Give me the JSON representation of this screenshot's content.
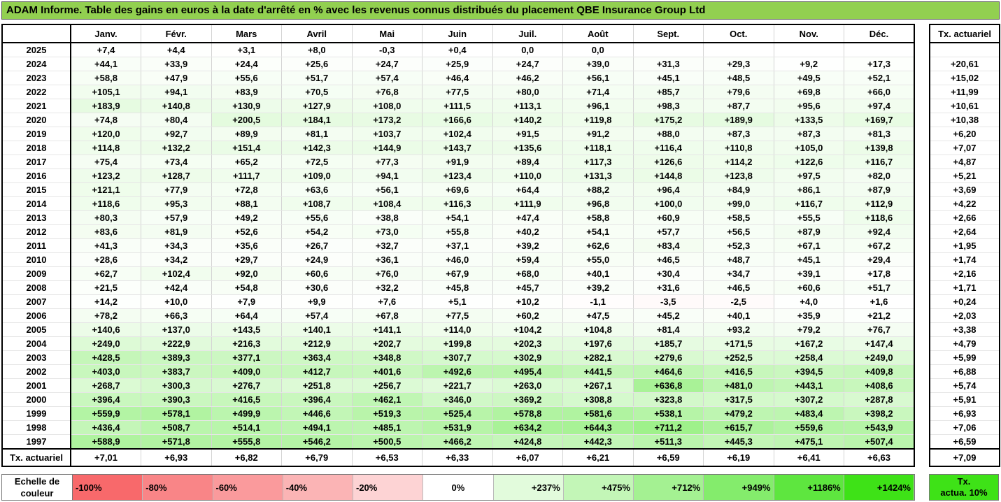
{
  "title": "ADAM Informe. Table des gains en euros à la date d'arrêté en % avec les revenus connus distribués du placement QBE Insurance Group Ltd",
  "months": [
    "Janv.",
    "Févr.",
    "Mars",
    "Avril",
    "Mai",
    "Juin",
    "Juil.",
    "Août",
    "Sept.",
    "Oct.",
    "Nov.",
    "Déc."
  ],
  "side_header": "Tx. actuariel",
  "rows": [
    {
      "year": "2025",
      "vals": [
        "+7,4",
        "+4,4",
        "+3,1",
        "+8,0",
        "-0,3",
        "+0,4",
        "0,0",
        "0,0",
        "",
        "",
        "",
        ""
      ],
      "rate": ""
    },
    {
      "year": "2024",
      "vals": [
        "+44,1",
        "+33,9",
        "+24,4",
        "+25,6",
        "+24,7",
        "+25,9",
        "+24,7",
        "+39,0",
        "+31,3",
        "+29,3",
        "+9,2",
        "+17,3"
      ],
      "rate": "+20,61"
    },
    {
      "year": "2023",
      "vals": [
        "+58,8",
        "+47,9",
        "+55,6",
        "+51,7",
        "+57,4",
        "+46,4",
        "+46,2",
        "+56,1",
        "+45,1",
        "+48,5",
        "+49,5",
        "+52,1"
      ],
      "rate": "+15,02"
    },
    {
      "year": "2022",
      "vals": [
        "+105,1",
        "+94,1",
        "+83,9",
        "+70,5",
        "+76,8",
        "+77,5",
        "+80,0",
        "+71,4",
        "+85,7",
        "+79,6",
        "+69,8",
        "+66,0"
      ],
      "rate": "+11,99"
    },
    {
      "year": "2021",
      "vals": [
        "+183,9",
        "+140,8",
        "+130,9",
        "+127,9",
        "+108,0",
        "+111,5",
        "+113,1",
        "+96,1",
        "+98,3",
        "+87,7",
        "+95,6",
        "+97,4"
      ],
      "rate": "+10,61"
    },
    {
      "year": "2020",
      "vals": [
        "+74,8",
        "+80,4",
        "+200,5",
        "+184,1",
        "+173,2",
        "+166,6",
        "+140,2",
        "+119,8",
        "+175,2",
        "+189,9",
        "+133,5",
        "+169,7"
      ],
      "rate": "+10,38"
    },
    {
      "year": "2019",
      "vals": [
        "+120,0",
        "+92,7",
        "+89,9",
        "+81,1",
        "+103,7",
        "+102,4",
        "+91,5",
        "+91,2",
        "+88,0",
        "+87,3",
        "+87,3",
        "+81,3"
      ],
      "rate": "+6,20"
    },
    {
      "year": "2018",
      "vals": [
        "+114,8",
        "+132,2",
        "+151,4",
        "+142,3",
        "+144,9",
        "+143,7",
        "+135,6",
        "+118,1",
        "+116,4",
        "+110,8",
        "+105,0",
        "+139,8"
      ],
      "rate": "+7,07"
    },
    {
      "year": "2017",
      "vals": [
        "+75,4",
        "+73,4",
        "+65,2",
        "+72,5",
        "+77,3",
        "+91,9",
        "+89,4",
        "+117,3",
        "+126,6",
        "+114,2",
        "+122,6",
        "+116,7"
      ],
      "rate": "+4,87"
    },
    {
      "year": "2016",
      "vals": [
        "+123,2",
        "+128,7",
        "+111,7",
        "+109,0",
        "+94,1",
        "+123,4",
        "+110,0",
        "+131,3",
        "+144,8",
        "+123,8",
        "+97,5",
        "+82,0"
      ],
      "rate": "+5,21"
    },
    {
      "year": "2015",
      "vals": [
        "+121,1",
        "+77,9",
        "+72,8",
        "+63,6",
        "+56,1",
        "+69,6",
        "+64,4",
        "+88,2",
        "+96,4",
        "+84,9",
        "+86,1",
        "+87,9"
      ],
      "rate": "+3,69"
    },
    {
      "year": "2014",
      "vals": [
        "+118,6",
        "+95,3",
        "+88,1",
        "+108,7",
        "+108,4",
        "+116,3",
        "+111,9",
        "+96,8",
        "+100,0",
        "+99,0",
        "+116,7",
        "+112,9"
      ],
      "rate": "+4,22"
    },
    {
      "year": "2013",
      "vals": [
        "+80,3",
        "+57,9",
        "+49,2",
        "+55,6",
        "+38,8",
        "+54,1",
        "+47,4",
        "+58,8",
        "+60,9",
        "+58,5",
        "+55,5",
        "+118,6"
      ],
      "rate": "+2,66"
    },
    {
      "year": "2012",
      "vals": [
        "+83,6",
        "+81,9",
        "+52,6",
        "+54,2",
        "+73,0",
        "+55,8",
        "+40,2",
        "+54,1",
        "+57,7",
        "+56,5",
        "+87,9",
        "+92,4"
      ],
      "rate": "+2,64"
    },
    {
      "year": "2011",
      "vals": [
        "+41,3",
        "+34,3",
        "+35,6",
        "+26,7",
        "+32,7",
        "+37,1",
        "+39,2",
        "+62,6",
        "+83,4",
        "+52,3",
        "+67,1",
        "+67,2"
      ],
      "rate": "+1,95"
    },
    {
      "year": "2010",
      "vals": [
        "+28,6",
        "+34,2",
        "+29,7",
        "+24,9",
        "+36,1",
        "+46,0",
        "+59,4",
        "+55,0",
        "+46,5",
        "+48,7",
        "+45,1",
        "+29,4"
      ],
      "rate": "+1,74"
    },
    {
      "year": "2009",
      "vals": [
        "+62,7",
        "+102,4",
        "+92,0",
        "+60,6",
        "+76,0",
        "+67,9",
        "+68,0",
        "+40,1",
        "+30,4",
        "+34,7",
        "+39,1",
        "+17,8"
      ],
      "rate": "+2,16"
    },
    {
      "year": "2008",
      "vals": [
        "+21,5",
        "+42,4",
        "+54,8",
        "+30,6",
        "+32,2",
        "+45,8",
        "+45,7",
        "+39,2",
        "+31,6",
        "+46,5",
        "+60,6",
        "+51,7"
      ],
      "rate": "+1,71"
    },
    {
      "year": "2007",
      "vals": [
        "+14,2",
        "+10,0",
        "+7,9",
        "+9,9",
        "+7,6",
        "+5,1",
        "+10,2",
        "-1,1",
        "-3,5",
        "-2,5",
        "+4,0",
        "+1,6"
      ],
      "rate": "+0,24"
    },
    {
      "year": "2006",
      "vals": [
        "+78,2",
        "+66,3",
        "+64,4",
        "+57,4",
        "+67,8",
        "+77,5",
        "+60,2",
        "+47,5",
        "+45,2",
        "+40,1",
        "+35,9",
        "+21,2"
      ],
      "rate": "+2,03"
    },
    {
      "year": "2005",
      "vals": [
        "+140,6",
        "+137,0",
        "+143,5",
        "+140,1",
        "+141,1",
        "+114,0",
        "+104,2",
        "+104,8",
        "+81,4",
        "+93,2",
        "+79,2",
        "+76,7"
      ],
      "rate": "+3,38"
    },
    {
      "year": "2004",
      "vals": [
        "+249,0",
        "+222,9",
        "+216,3",
        "+212,9",
        "+202,7",
        "+199,8",
        "+202,3",
        "+197,6",
        "+185,7",
        "+171,5",
        "+167,2",
        "+147,4"
      ],
      "rate": "+4,79"
    },
    {
      "year": "2003",
      "vals": [
        "+428,5",
        "+389,3",
        "+377,1",
        "+363,4",
        "+348,8",
        "+307,7",
        "+302,9",
        "+282,1",
        "+279,6",
        "+252,5",
        "+258,4",
        "+249,0"
      ],
      "rate": "+5,99"
    },
    {
      "year": "2002",
      "vals": [
        "+403,0",
        "+383,7",
        "+409,0",
        "+412,7",
        "+401,6",
        "+492,6",
        "+495,4",
        "+441,5",
        "+464,6",
        "+416,5",
        "+394,5",
        "+409,8"
      ],
      "rate": "+6,88"
    },
    {
      "year": "2001",
      "vals": [
        "+268,7",
        "+300,3",
        "+276,7",
        "+251,8",
        "+256,7",
        "+221,7",
        "+263,0",
        "+267,1",
        "+636,8",
        "+481,0",
        "+443,1",
        "+408,6"
      ],
      "rate": "+5,74"
    },
    {
      "year": "2000",
      "vals": [
        "+396,4",
        "+390,3",
        "+416,5",
        "+396,4",
        "+462,1",
        "+346,0",
        "+369,2",
        "+308,8",
        "+323,8",
        "+317,5",
        "+307,2",
        "+287,8"
      ],
      "rate": "+5,91"
    },
    {
      "year": "1999",
      "vals": [
        "+559,9",
        "+578,1",
        "+499,9",
        "+446,6",
        "+519,3",
        "+525,4",
        "+578,8",
        "+581,6",
        "+538,1",
        "+479,2",
        "+483,4",
        "+398,2"
      ],
      "rate": "+6,93"
    },
    {
      "year": "1998",
      "vals": [
        "+436,4",
        "+508,7",
        "+514,1",
        "+494,1",
        "+485,1",
        "+531,9",
        "+634,2",
        "+644,3",
        "+711,2",
        "+615,7",
        "+559,6",
        "+543,9"
      ],
      "rate": "+7,06"
    },
    {
      "year": "1997",
      "vals": [
        "+588,9",
        "+571,8",
        "+555,8",
        "+546,2",
        "+500,5",
        "+466,2",
        "+424,8",
        "+442,3",
        "+511,3",
        "+445,3",
        "+475,1",
        "+507,4"
      ],
      "rate": "+6,59"
    }
  ],
  "footer": {
    "label": "Tx. actuariel",
    "vals": [
      "+7,01",
      "+6,93",
      "+6,82",
      "+6,79",
      "+6,53",
      "+6,33",
      "+6,07",
      "+6,21",
      "+6,59",
      "+6,19",
      "+6,41",
      "+6,63"
    ],
    "rate": "+7,09"
  },
  "scale": {
    "label_line1": "Echelle de",
    "label_line2": "couleur",
    "swatches": [
      {
        "label": "-100%",
        "color": "#f8696b",
        "kind": "neg"
      },
      {
        "label": "-80%",
        "color": "#f98587",
        "kind": "neg"
      },
      {
        "label": "-60%",
        "color": "#fa9a9c",
        "kind": "neg"
      },
      {
        "label": "-40%",
        "color": "#fbb4b5",
        "kind": "neg"
      },
      {
        "label": "-20%",
        "color": "#fdd3d4",
        "kind": "neg"
      },
      {
        "label": "0%",
        "color": "#ffffff",
        "kind": "zero"
      },
      {
        "label": "+237%",
        "color": "#e2fbdc",
        "kind": "pos"
      },
      {
        "label": "+475%",
        "color": "#c3f6b7",
        "kind": "pos"
      },
      {
        "label": "+712%",
        "color": "#a4f192",
        "kind": "pos"
      },
      {
        "label": "+949%",
        "color": "#84ec6c",
        "kind": "pos"
      },
      {
        "label": "+1186%",
        "color": "#5ee63f",
        "kind": "pos"
      },
      {
        "label": "+1424%",
        "color": "#3ee217",
        "kind": "pos"
      }
    ],
    "rate_legend_line1": "Tx.",
    "rate_legend_line2": "actua. 10%",
    "rate_legend_color": "#3ee217"
  },
  "colors": {
    "title_bg": "#92d050",
    "positive_max": "#3ee217",
    "negative": "#f8696b"
  }
}
